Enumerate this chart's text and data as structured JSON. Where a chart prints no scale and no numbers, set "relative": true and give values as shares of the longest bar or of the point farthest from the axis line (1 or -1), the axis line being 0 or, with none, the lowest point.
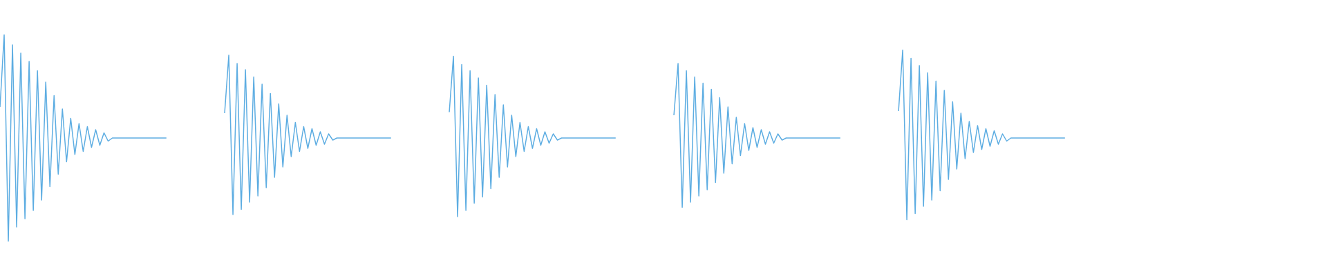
{
  "chart_data": {
    "type": "line",
    "relative": true,
    "tick_labels": false,
    "categories": [
      null,
      null,
      null,
      null,
      null,
      null,
      null,
      null,
      null,
      null,
      null,
      null,
      null,
      null,
      null,
      null,
      null,
      null,
      null,
      null,
      null,
      null,
      null,
      null,
      null,
      null,
      null,
      null,
      null,
      null,
      null,
      null,
      null,
      null,
      null,
      null,
      null,
      null,
      null,
      null,
      null,
      null,
      null,
      null,
      null,
      null,
      null,
      null,
      null,
      null,
      null,
      null,
      null,
      null,
      null,
      null,
      null,
      null,
      null,
      null,
      null,
      null,
      null,
      null,
      null,
      null,
      null,
      null,
      null,
      null,
      null,
      null,
      null,
      null,
      null,
      null,
      null,
      null,
      null,
      null,
      null,
      null,
      null,
      null,
      null,
      null,
      null,
      null,
      null,
      null,
      null,
      null,
      null,
      null,
      null,
      null,
      null,
      null,
      null,
      null,
      null,
      null,
      null,
      null,
      null,
      null,
      null,
      null,
      null,
      null,
      null,
      null,
      null,
      null,
      null,
      null,
      null,
      null,
      null,
      null,
      null,
      null,
      null,
      null,
      null,
      null,
      null,
      null,
      null,
      null,
      null,
      null,
      null,
      null,
      null,
      null,
      null,
      null,
      null,
      null,
      null,
      null,
      null,
      null,
      null,
      null,
      null,
      null,
      null,
      null,
      null,
      null,
      null,
      null,
      null,
      null,
      null,
      null,
      null,
      null,
      null,
      null,
      null,
      null,
      null,
      null,
      null,
      null,
      null,
      null,
      null,
      null,
      null,
      null,
      null,
      null,
      null,
      null,
      null,
      null,
      null,
      null,
      null,
      null,
      null,
      null,
      null,
      null,
      null,
      null,
      null,
      null,
      null,
      null,
      null,
      null,
      null,
      null,
      null,
      null,
      null,
      null,
      null,
      null,
      null,
      null,
      null,
      null,
      null,
      null,
      null,
      null,
      null,
      null,
      null,
      null,
      null,
      null,
      null,
      null,
      null,
      null,
      null,
      null,
      null,
      null,
      null,
      null,
      null,
      null,
      null,
      null,
      null,
      null,
      null,
      null,
      null,
      null,
      null,
      null,
      null,
      null,
      null,
      null,
      null,
      null,
      null,
      null,
      null,
      null,
      null,
      null,
      null,
      null,
      null,
      null,
      null,
      null,
      null,
      null,
      null,
      null,
      null,
      null,
      null,
      null,
      null,
      null,
      null,
      null,
      null,
      null,
      null,
      null,
      null,
      null,
      null,
      null,
      null,
      null,
      null,
      null,
      null,
      null,
      null,
      null,
      null,
      null,
      null,
      null,
      null,
      null,
      null,
      null,
      null,
      null,
      null,
      null,
      null,
      null,
      null,
      null,
      null,
      null,
      null,
      null,
      null,
      null,
      null,
      null,
      null,
      null,
      null,
      null,
      null,
      null,
      null,
      null,
      null,
      null
    ],
    "series": [
      {
        "color": "#5dade2",
        "values": [
          0.65,
          1,
          0,
          0.95,
          0.07,
          0.91,
          0.11,
          0.87,
          0.15,
          0.825,
          0.2,
          0.77,
          0.265,
          0.705,
          0.325,
          0.64,
          0.385,
          0.595,
          0.42,
          0.57,
          0.435,
          0.555,
          0.455,
          0.54,
          0.465,
          0.525,
          0.485,
          0.5,
          0.5,
          0.5,
          0.5,
          0.5,
          0.5,
          0.5,
          0.5,
          0.5,
          0.5,
          0.5,
          0.5,
          0.5,
          0.5,
          null,
          null,
          null,
          null,
          null,
          null,
          null,
          null,
          null,
          null,
          null,
          null,
          null,
          null,
          null,
          null,
          null,
          null,
          null,
          null,
          null,
          null,
          null,
          null,
          null,
          null,
          null,
          null,
          null,
          null,
          null,
          null,
          null,
          null,
          null,
          null,
          null,
          null,
          null,
          null,
          null,
          null,
          null,
          null,
          null,
          null,
          null,
          null,
          null,
          null,
          null,
          null,
          null,
          null,
          null,
          null,
          null,
          null,
          null,
          null,
          null,
          null,
          null,
          null,
          null,
          null,
          null,
          null,
          null,
          null,
          null,
          null,
          null,
          null,
          null,
          null,
          null,
          null,
          null,
          null,
          null,
          null,
          null,
          null,
          null,
          null,
          null,
          null,
          null,
          null,
          null,
          null,
          null,
          null,
          null,
          null,
          null,
          null,
          null,
          null,
          null,
          null,
          null,
          null,
          null,
          null,
          null,
          null,
          null,
          null,
          null,
          null,
          null,
          null,
          null,
          null,
          null,
          null,
          null,
          null,
          null,
          null,
          null,
          null,
          null,
          null,
          null,
          null,
          null,
          null,
          null,
          null,
          null,
          null,
          null,
          null,
          null,
          null,
          null,
          null,
          null,
          null,
          null,
          null,
          null,
          null,
          null,
          null,
          null,
          null,
          null,
          null,
          null,
          null,
          null,
          null,
          null,
          null,
          null,
          null,
          null,
          null,
          null,
          null,
          null,
          null,
          null,
          null,
          null,
          null,
          null,
          null,
          null,
          null,
          null,
          null,
          null,
          null,
          null,
          null,
          null,
          null,
          null,
          null,
          null,
          null,
          null,
          null,
          null,
          null,
          null,
          null,
          null,
          null,
          null,
          null,
          null,
          null,
          null,
          null,
          null,
          null,
          null,
          null,
          null,
          null,
          null,
          null,
          null,
          null,
          null,
          null,
          null,
          null,
          null,
          null,
          null,
          null,
          null,
          null,
          null,
          null,
          null,
          null,
          null,
          null,
          null,
          null,
          null,
          null,
          null,
          null,
          null,
          null,
          null,
          null,
          null,
          null,
          null,
          null,
          null,
          null,
          null,
          null,
          null,
          null,
          null,
          null,
          null,
          null,
          null,
          null,
          null,
          null,
          null,
          null,
          null,
          null,
          null,
          null,
          null,
          null,
          null,
          null,
          null,
          null,
          null,
          null,
          null,
          null,
          null,
          null,
          null,
          null,
          null,
          null,
          null,
          null,
          null
        ]
      },
      {
        "color": "#5dade2",
        "values": [
          null,
          null,
          null,
          null,
          null,
          null,
          null,
          null,
          null,
          null,
          null,
          null,
          null,
          null,
          null,
          null,
          null,
          null,
          null,
          null,
          null,
          null,
          null,
          null,
          null,
          null,
          null,
          null,
          null,
          null,
          null,
          null,
          null,
          null,
          null,
          null,
          null,
          null,
          null,
          null,
          null,
          null,
          null,
          null,
          null,
          null,
          null,
          null,
          null,
          null,
          null,
          null,
          null,
          null,
          0.62,
          0.9,
          0.13,
          0.86,
          0.155,
          0.83,
          0.19,
          0.795,
          0.22,
          0.76,
          0.26,
          0.715,
          0.31,
          0.665,
          0.36,
          0.61,
          0.41,
          0.575,
          0.435,
          0.555,
          0.45,
          0.545,
          0.465,
          0.53,
          0.47,
          0.52,
          0.49,
          0.5,
          0.5,
          0.5,
          0.5,
          0.5,
          0.5,
          0.5,
          0.5,
          0.5,
          0.5,
          0.5,
          0.5,
          0.5,
          0.5,
          null,
          null,
          null,
          null,
          null,
          null,
          null,
          null,
          null,
          null,
          null,
          null,
          null,
          null,
          null,
          null,
          null,
          null,
          null,
          null,
          null,
          null,
          null,
          null,
          null,
          null,
          null,
          null,
          null,
          null,
          null,
          null,
          null,
          null,
          null,
          null,
          null,
          null,
          null,
          null,
          null,
          null,
          null,
          null,
          null,
          null,
          null,
          null,
          null,
          null,
          null,
          null,
          null,
          null,
          null,
          null,
          null,
          null,
          null,
          null,
          null,
          null,
          null,
          null,
          null,
          null,
          null,
          null,
          null,
          null,
          null,
          null,
          null,
          null,
          null,
          null,
          null,
          null,
          null,
          null,
          null,
          null,
          null,
          null,
          null,
          null,
          null,
          null,
          null,
          null,
          null,
          null,
          null,
          null,
          null,
          null,
          null,
          null,
          null,
          null,
          null,
          null,
          null,
          null,
          null,
          null,
          null,
          null,
          null,
          null,
          null,
          null,
          null,
          null,
          null,
          null,
          null,
          null,
          null,
          null,
          null,
          null,
          null,
          null,
          null,
          null,
          null,
          null,
          null,
          null,
          null,
          null,
          null,
          null,
          null,
          null,
          null,
          null,
          null,
          null,
          null,
          null,
          null,
          null,
          null,
          null,
          null,
          null,
          null,
          null,
          null,
          null,
          null,
          null,
          null,
          null,
          null,
          null,
          null,
          null,
          null,
          null,
          null,
          null,
          null,
          null,
          null,
          null,
          null,
          null,
          null,
          null,
          null,
          null,
          null,
          null,
          null,
          null,
          null,
          null,
          null,
          null,
          null,
          null,
          null,
          null,
          null,
          null,
          null,
          null,
          null,
          null,
          null,
          null,
          null,
          null,
          null,
          null,
          null,
          null,
          null,
          null,
          null,
          null,
          null,
          null,
          null,
          null,
          null,
          null,
          null,
          null,
          null,
          null,
          null,
          null,
          null,
          null,
          null,
          null,
          null,
          null,
          null,
          null,
          null
        ]
      },
      {
        "color": "#5dade2",
        "values": [
          null,
          null,
          null,
          null,
          null,
          null,
          null,
          null,
          null,
          null,
          null,
          null,
          null,
          null,
          null,
          null,
          null,
          null,
          null,
          null,
          null,
          null,
          null,
          null,
          null,
          null,
          null,
          null,
          null,
          null,
          null,
          null,
          null,
          null,
          null,
          null,
          null,
          null,
          null,
          null,
          null,
          null,
          null,
          null,
          null,
          null,
          null,
          null,
          null,
          null,
          null,
          null,
          null,
          null,
          null,
          null,
          null,
          null,
          null,
          null,
          null,
          null,
          null,
          null,
          null,
          null,
          null,
          null,
          null,
          null,
          null,
          null,
          null,
          null,
          null,
          null,
          null,
          null,
          null,
          null,
          null,
          null,
          null,
          null,
          null,
          null,
          null,
          null,
          null,
          null,
          null,
          null,
          null,
          null,
          null,
          null,
          null,
          null,
          null,
          null,
          null,
          null,
          null,
          null,
          null,
          null,
          null,
          null,
          0.625,
          0.895,
          0.12,
          0.855,
          0.15,
          0.825,
          0.185,
          0.79,
          0.215,
          0.755,
          0.255,
          0.71,
          0.31,
          0.66,
          0.36,
          0.61,
          0.41,
          0.575,
          0.435,
          0.555,
          0.45,
          0.545,
          0.465,
          0.53,
          0.475,
          0.52,
          0.49,
          0.5,
          0.5,
          0.5,
          0.5,
          0.5,
          0.5,
          0.5,
          0.5,
          0.5,
          0.5,
          0.5,
          0.5,
          0.5,
          0.5,
          null,
          null,
          null,
          null,
          null,
          null,
          null,
          null,
          null,
          null,
          null,
          null,
          null,
          null,
          null,
          null,
          null,
          null,
          null,
          null,
          null,
          null,
          null,
          null,
          null,
          null,
          null,
          null,
          null,
          null,
          null,
          null,
          null,
          null,
          null,
          null,
          null,
          null,
          null,
          null,
          null,
          null,
          null,
          null,
          null,
          null,
          null,
          null,
          null,
          null,
          null,
          null,
          null,
          null,
          null,
          null,
          null,
          null,
          null,
          null,
          null,
          null,
          null,
          null,
          null,
          null,
          null,
          null,
          null,
          null,
          null,
          null,
          null,
          null,
          null,
          null,
          null,
          null,
          null,
          null,
          null,
          null,
          null,
          null,
          null,
          null,
          null,
          null,
          null,
          null,
          null,
          null,
          null,
          null,
          null,
          null,
          null,
          null,
          null,
          null,
          null,
          null,
          null,
          null,
          null,
          null,
          null,
          null,
          null,
          null,
          null,
          null,
          null,
          null,
          null,
          null,
          null,
          null,
          null,
          null,
          null,
          null,
          null,
          null,
          null,
          null,
          null,
          null,
          null,
          null,
          null,
          null,
          null,
          null,
          null,
          null,
          null,
          null,
          null,
          null,
          null,
          null,
          null,
          null,
          null,
          null,
          null,
          null,
          null,
          null,
          null,
          null,
          null,
          null,
          null,
          null,
          null,
          null,
          null,
          null,
          null,
          null,
          null,
          null,
          null,
          null,
          null,
          null,
          null,
          null,
          null
        ]
      },
      {
        "color": "#5dade2",
        "values": [
          null,
          null,
          null,
          null,
          null,
          null,
          null,
          null,
          null,
          null,
          null,
          null,
          null,
          null,
          null,
          null,
          null,
          null,
          null,
          null,
          null,
          null,
          null,
          null,
          null,
          null,
          null,
          null,
          null,
          null,
          null,
          null,
          null,
          null,
          null,
          null,
          null,
          null,
          null,
          null,
          null,
          null,
          null,
          null,
          null,
          null,
          null,
          null,
          null,
          null,
          null,
          null,
          null,
          null,
          null,
          null,
          null,
          null,
          null,
          null,
          null,
          null,
          null,
          null,
          null,
          null,
          null,
          null,
          null,
          null,
          null,
          null,
          null,
          null,
          null,
          null,
          null,
          null,
          null,
          null,
          null,
          null,
          null,
          null,
          null,
          null,
          null,
          null,
          null,
          null,
          null,
          null,
          null,
          null,
          null,
          null,
          null,
          null,
          null,
          null,
          null,
          null,
          null,
          null,
          null,
          null,
          null,
          null,
          null,
          null,
          null,
          null,
          null,
          null,
          null,
          null,
          null,
          null,
          null,
          null,
          null,
          null,
          null,
          null,
          null,
          null,
          null,
          null,
          null,
          null,
          null,
          null,
          null,
          null,
          null,
          null,
          null,
          null,
          null,
          null,
          null,
          null,
          null,
          null,
          null,
          null,
          null,
          null,
          null,
          null,
          null,
          null,
          null,
          null,
          null,
          null,
          null,
          null,
          null,
          null,
          null,
          null,
          0.61,
          0.86,
          0.165,
          0.825,
          0.19,
          0.795,
          0.22,
          0.765,
          0.25,
          0.735,
          0.285,
          0.695,
          0.33,
          0.65,
          0.375,
          0.6,
          0.415,
          0.57,
          0.44,
          0.55,
          0.455,
          0.54,
          0.47,
          0.53,
          0.475,
          0.52,
          0.49,
          0.5,
          0.5,
          0.5,
          0.5,
          0.5,
          0.5,
          0.5,
          0.5,
          0.5,
          0.5,
          0.5,
          0.5,
          0.5,
          0.5,
          null,
          null,
          null,
          null,
          null,
          null,
          null,
          null,
          null,
          null,
          null,
          null,
          null,
          null,
          null,
          null,
          null,
          null,
          null,
          null,
          null,
          null,
          null,
          null,
          null,
          null,
          null,
          null,
          null,
          null,
          null,
          null,
          null,
          null,
          null,
          null,
          null,
          null,
          null,
          null,
          null,
          null,
          null,
          null,
          null,
          null,
          null,
          null,
          null,
          null,
          null,
          null,
          null,
          null,
          null,
          null,
          null,
          null,
          null,
          null,
          null,
          null,
          null,
          null,
          null,
          null,
          null,
          null,
          null,
          null,
          null,
          null,
          null,
          null,
          null,
          null,
          null,
          null,
          null,
          null,
          null,
          null,
          null,
          null,
          null,
          null,
          null,
          null,
          null,
          null,
          null,
          null,
          null,
          null,
          null,
          null,
          null,
          null,
          null,
          null,
          null,
          null,
          null,
          null,
          null,
          null,
          null,
          null,
          null,
          null,
          null,
          null,
          null,
          null,
          null,
          null,
          null
        ]
      },
      {
        "color": "#5dade2",
        "values": [
          null,
          null,
          null,
          null,
          null,
          null,
          null,
          null,
          null,
          null,
          null,
          null,
          null,
          null,
          null,
          null,
          null,
          null,
          null,
          null,
          null,
          null,
          null,
          null,
          null,
          null,
          null,
          null,
          null,
          null,
          null,
          null,
          null,
          null,
          null,
          null,
          null,
          null,
          null,
          null,
          null,
          null,
          null,
          null,
          null,
          null,
          null,
          null,
          null,
          null,
          null,
          null,
          null,
          null,
          null,
          null,
          null,
          null,
          null,
          null,
          null,
          null,
          null,
          null,
          null,
          null,
          null,
          null,
          null,
          null,
          null,
          null,
          null,
          null,
          null,
          null,
          null,
          null,
          null,
          null,
          null,
          null,
          null,
          null,
          null,
          null,
          null,
          null,
          null,
          null,
          null,
          null,
          null,
          null,
          null,
          null,
          null,
          null,
          null,
          null,
          null,
          null,
          null,
          null,
          null,
          null,
          null,
          null,
          null,
          null,
          null,
          null,
          null,
          null,
          null,
          null,
          null,
          null,
          null,
          null,
          null,
          null,
          null,
          null,
          null,
          null,
          null,
          null,
          null,
          null,
          null,
          null,
          null,
          null,
          null,
          null,
          null,
          null,
          null,
          null,
          null,
          null,
          null,
          null,
          null,
          null,
          null,
          null,
          null,
          null,
          null,
          null,
          null,
          null,
          null,
          null,
          null,
          null,
          null,
          null,
          null,
          null,
          null,
          null,
          null,
          null,
          null,
          null,
          null,
          null,
          null,
          null,
          null,
          null,
          null,
          null,
          null,
          null,
          null,
          null,
          null,
          null,
          null,
          null,
          null,
          null,
          null,
          null,
          null,
          null,
          null,
          null,
          null,
          null,
          null,
          null,
          null,
          null,
          null,
          null,
          null,
          null,
          null,
          null,
          null,
          null,
          null,
          null,
          null,
          null,
          null,
          null,
          null,
          null,
          null,
          null,
          0.63,
          0.925,
          0.105,
          0.885,
          0.135,
          0.85,
          0.17,
          0.815,
          0.2,
          0.775,
          0.245,
          0.73,
          0.3,
          0.675,
          0.35,
          0.62,
          0.4,
          0.58,
          0.43,
          0.56,
          0.445,
          0.545,
          0.46,
          0.535,
          0.47,
          0.52,
          0.485,
          0.5,
          0.5,
          0.5,
          0.5,
          0.5,
          0.5,
          0.5,
          0.5,
          0.5,
          0.5,
          0.5,
          0.5,
          0.5,
          0.5,
          null,
          null,
          null,
          null,
          null,
          null,
          null,
          null,
          null,
          null,
          null,
          null,
          null,
          null,
          null,
          null,
          null,
          null,
          null,
          null,
          null,
          null,
          null,
          null,
          null,
          null,
          null,
          null,
          null,
          null,
          null,
          null,
          null,
          null,
          null,
          null,
          null,
          null,
          null,
          null,
          null,
          null,
          null,
          null,
          null,
          null,
          null,
          null,
          null,
          null,
          null,
          null,
          null,
          null,
          null,
          null,
          null,
          null,
          null,
          null,
          null,
          null,
          null
        ]
      }
    ]
  }
}
